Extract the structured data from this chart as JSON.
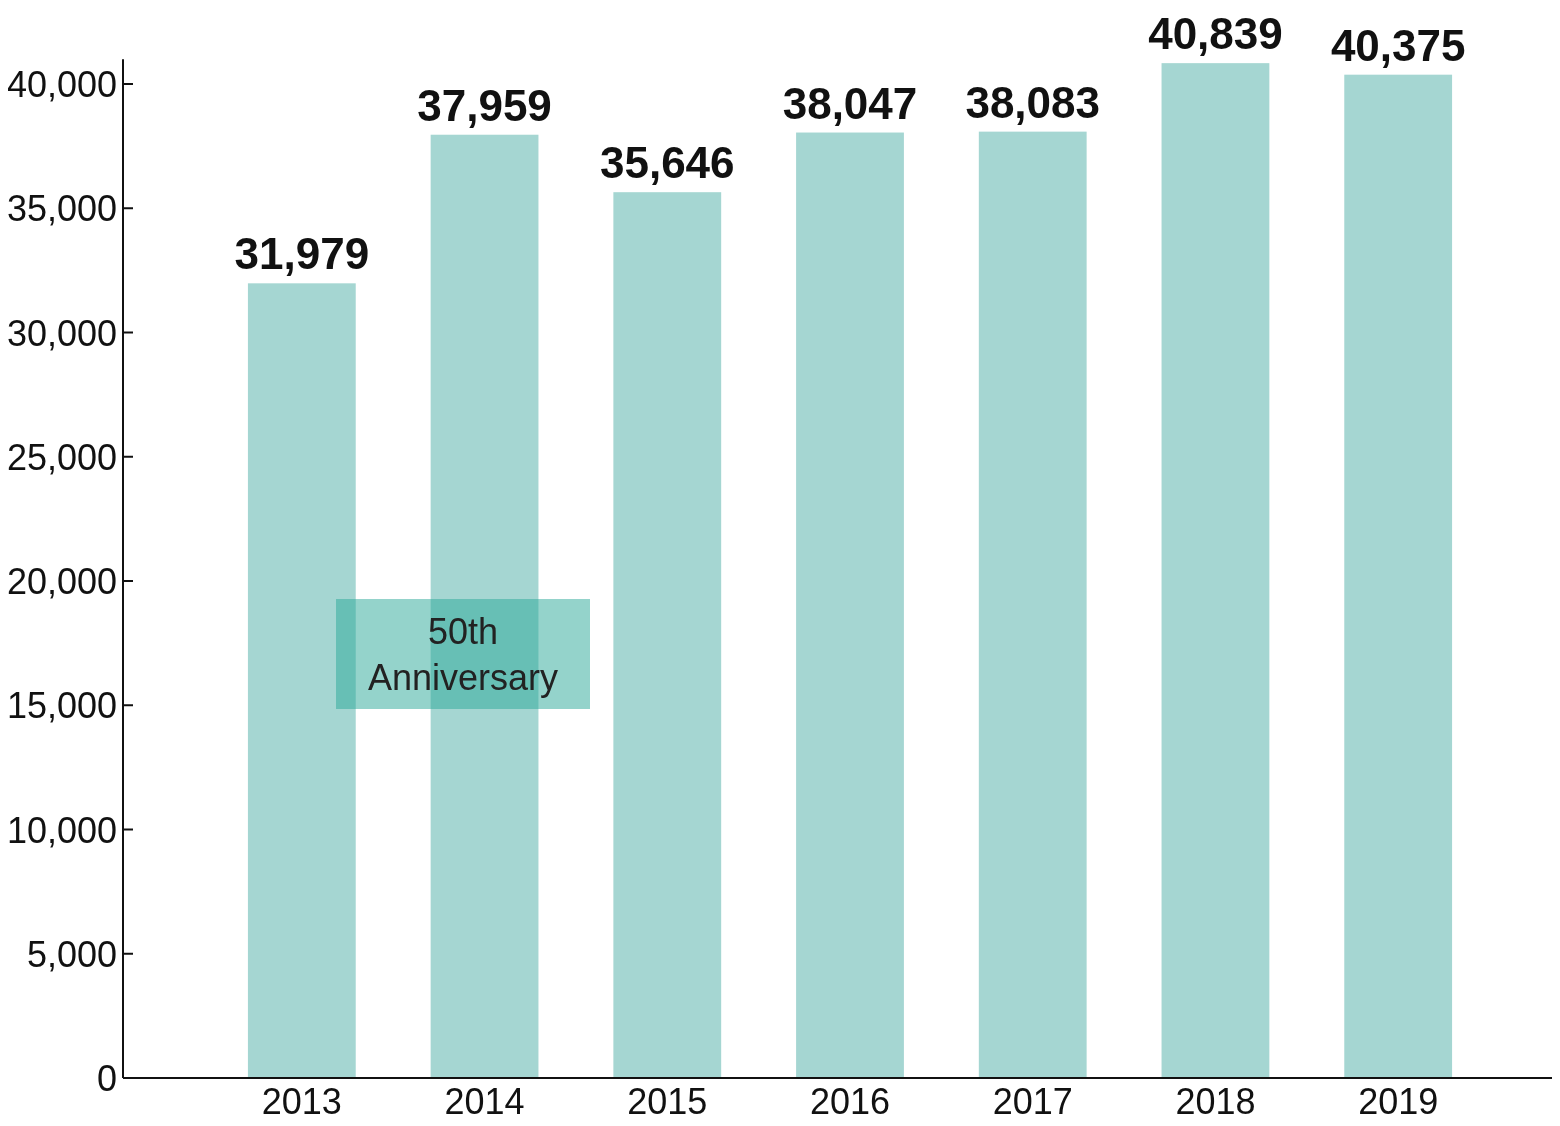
{
  "chart_data": {
    "type": "bar",
    "categories": [
      "2013",
      "2014",
      "2015",
      "2016",
      "2017",
      "2018",
      "2019"
    ],
    "values": [
      31979,
      37959,
      35646,
      38047,
      38083,
      40839,
      40375
    ],
    "color": "#a5d6d2",
    "value_labels": [
      "31,979",
      "37,959",
      "35,646",
      "38,047",
      "38,083",
      "40,839",
      "40,375"
    ],
    "ylim": [
      0,
      41000
    ],
    "yticks": [
      0,
      {
        "value": 5000,
        "label": "5,000"
      },
      {
        "value": 10000,
        "label": "10,000"
      },
      {
        "value": 15000,
        "label": "15,000"
      },
      {
        "value": 20000,
        "label": "20,000"
      },
      {
        "value": 25000,
        "label": "25,000"
      },
      {
        "value": 30000,
        "label": "30,000"
      },
      {
        "value": 35000,
        "label": "35,000"
      },
      {
        "value": 40000,
        "label": "40,000"
      }
    ],
    "grid": false,
    "annotations": [
      "50th Anniversary"
    ]
  }
}
